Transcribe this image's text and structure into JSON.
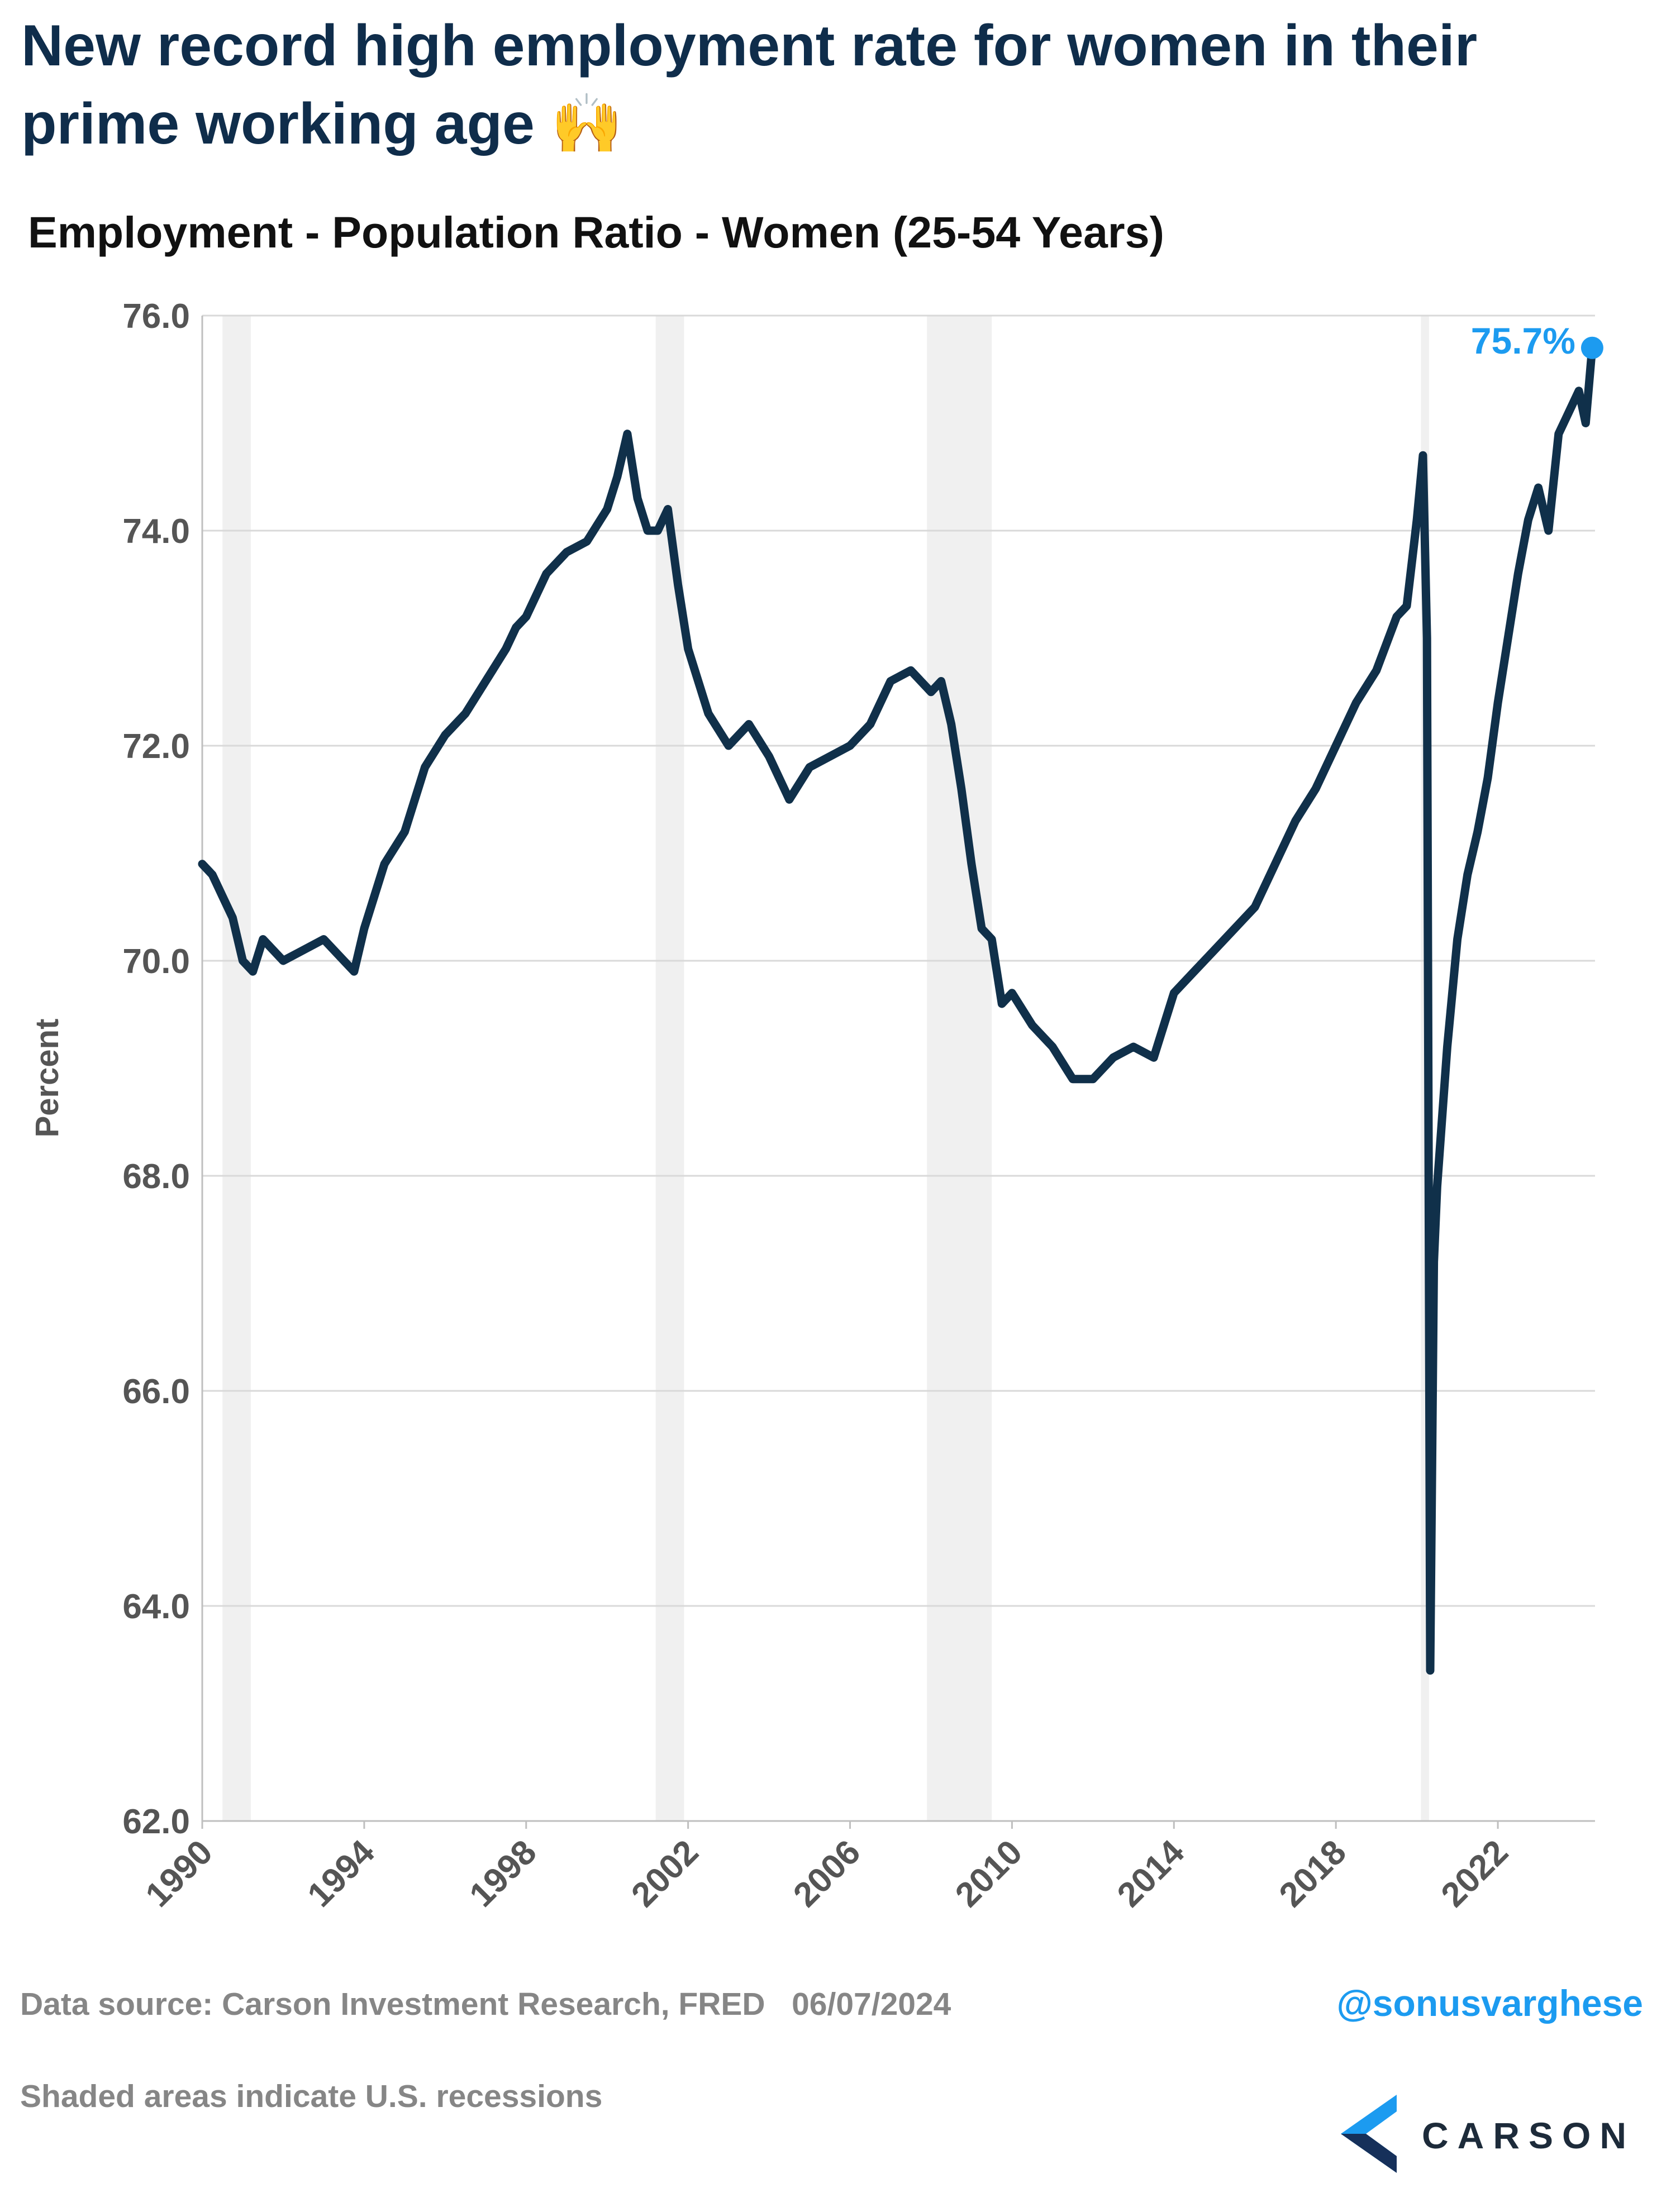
{
  "header": {
    "title": "New record high employment rate for women in their prime working age",
    "title_icon": "raising-hands-emoji",
    "subtitle": "Employment - Population Ratio - Women (25-54 Years)"
  },
  "footer": {
    "source": "Data source: Carson Investment Research, FRED   06/07/2024",
    "handle": "@sonusvarghese",
    "note": "Shaded areas indicate U.S. recessions",
    "logo_text": "CARSON",
    "logo_icon": "carson-chevron-logo"
  },
  "chart_data": {
    "type": "line",
    "title": "Employment - Population Ratio - Women (25-54 Years)",
    "ylabel": "Percent",
    "xlabel": "",
    "xlim": [
      1990.0,
      2024.4
    ],
    "ylim": [
      62.0,
      76.0
    ],
    "yticks": [
      "62.0",
      "64.0",
      "66.0",
      "68.0",
      "70.0",
      "72.0",
      "74.0",
      "76.0"
    ],
    "xticks": [
      "1990",
      "1994",
      "1998",
      "2002",
      "2006",
      "2010",
      "2014",
      "2018",
      "2022"
    ],
    "grid": "horizontal",
    "recessions": [
      [
        1990.5,
        1991.2
      ],
      [
        2001.2,
        2001.9
      ],
      [
        2007.9,
        2009.5
      ],
      [
        2020.1,
        2020.3
      ]
    ],
    "series": [
      {
        "color": "#10304a",
        "x": [
          1990.0,
          1990.25,
          1990.5,
          1990.75,
          1991.0,
          1991.25,
          1991.5,
          1991.75,
          1992.0,
          1992.5,
          1993.0,
          1993.5,
          1993.75,
          1994.0,
          1994.5,
          1995.0,
          1995.5,
          1996.0,
          1996.5,
          1997.0,
          1997.5,
          1997.75,
          1998.0,
          1998.5,
          1999.0,
          1999.5,
          2000.0,
          2000.25,
          2000.5,
          2000.75,
          2001.0,
          2001.25,
          2001.5,
          2001.75,
          2002.0,
          2002.5,
          2003.0,
          2003.5,
          2004.0,
          2004.5,
          2005.0,
          2005.5,
          2006.0,
          2006.5,
          2007.0,
          2007.5,
          2008.0,
          2008.25,
          2008.5,
          2008.75,
          2009.0,
          2009.25,
          2009.5,
          2009.75,
          2010.0,
          2010.5,
          2011.0,
          2011.5,
          2012.0,
          2012.5,
          2013.0,
          2013.5,
          2014.0,
          2014.5,
          2015.0,
          2015.5,
          2016.0,
          2016.5,
          2017.0,
          2017.5,
          2018.0,
          2018.5,
          2019.0,
          2019.5,
          2019.75,
          2020.0,
          2020.15,
          2020.25,
          2020.33,
          2020.42,
          2020.5,
          2020.75,
          2021.0,
          2021.25,
          2021.5,
          2021.75,
          2022.0,
          2022.5,
          2022.75,
          2023.0,
          2023.25,
          2023.5,
          2023.75,
          2024.0,
          2024.17,
          2024.33
        ],
        "y": [
          70.9,
          70.8,
          70.6,
          70.4,
          70.0,
          69.9,
          70.2,
          70.1,
          70.0,
          70.1,
          70.2,
          70.0,
          69.9,
          70.3,
          70.9,
          71.2,
          71.8,
          72.1,
          72.3,
          72.6,
          72.9,
          73.1,
          73.2,
          73.6,
          73.8,
          73.9,
          74.2,
          74.5,
          74.9,
          74.3,
          74.0,
          74.0,
          74.2,
          73.5,
          72.9,
          72.3,
          72.0,
          72.2,
          71.9,
          71.5,
          71.8,
          71.9,
          72.0,
          72.2,
          72.6,
          72.7,
          72.5,
          72.6,
          72.2,
          71.6,
          70.9,
          70.3,
          70.2,
          69.6,
          69.7,
          69.4,
          69.2,
          68.9,
          68.9,
          69.1,
          69.2,
          69.1,
          69.7,
          69.9,
          70.1,
          70.3,
          70.5,
          70.9,
          71.3,
          71.6,
          72.0,
          72.4,
          72.7,
          73.2,
          73.3,
          74.1,
          74.7,
          73.0,
          63.4,
          67.2,
          67.9,
          69.2,
          70.2,
          70.8,
          71.2,
          71.7,
          72.4,
          73.6,
          74.1,
          74.4,
          74.0,
          74.9,
          75.1,
          75.3,
          75.0,
          75.7
        ]
      }
    ],
    "annotation": {
      "label": "75.7%",
      "x": 2024.33,
      "y": 75.7,
      "color": "#1c9bf0"
    }
  }
}
